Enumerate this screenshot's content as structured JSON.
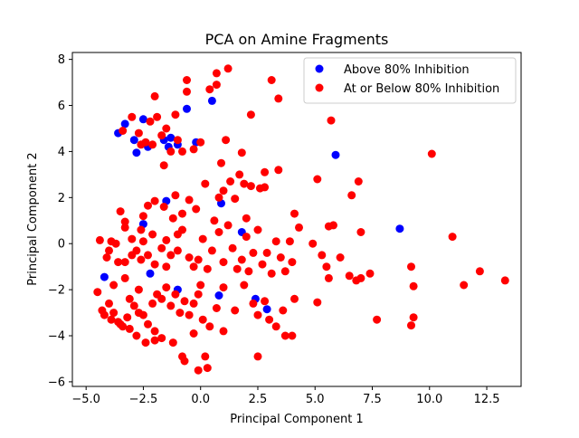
{
  "chart_data": {
    "type": "scatter",
    "title": "PCA on Amine Fragments",
    "xlabel": "Principal Component 1",
    "ylabel": "Principal Component 2",
    "xlim": [
      -5.6,
      14.0
    ],
    "ylim": [
      -6.2,
      8.3
    ],
    "xticks": [
      -5.0,
      -2.5,
      0.0,
      2.5,
      5.0,
      7.5,
      10.0,
      12.5
    ],
    "xtick_labels": [
      "−5.0",
      "−2.5",
      "0.0",
      "2.5",
      "5.0",
      "7.5",
      "10.0",
      "12.5"
    ],
    "yticks": [
      -6,
      -4,
      -2,
      0,
      2,
      4,
      6,
      8
    ],
    "ytick_labels": [
      "−6",
      "−4",
      "−2",
      "0",
      "2",
      "4",
      "6",
      "8"
    ],
    "grid": false,
    "legend_position": "top-right",
    "series": [
      {
        "name": "Above 80% Inhibition",
        "color": "#0000ff",
        "points": [
          [
            -3.6,
            4.8
          ],
          [
            -3.3,
            5.2
          ],
          [
            -2.9,
            4.5
          ],
          [
            -2.8,
            3.95
          ],
          [
            -2.5,
            5.4
          ],
          [
            -2.3,
            4.2
          ],
          [
            -1.6,
            4.5
          ],
          [
            -1.4,
            4.2
          ],
          [
            -1.3,
            4.6
          ],
          [
            -1.0,
            4.3
          ],
          [
            -0.6,
            5.85
          ],
          [
            -0.2,
            4.4
          ],
          [
            0.5,
            6.2
          ],
          [
            5.9,
            3.85
          ],
          [
            8.7,
            0.65
          ],
          [
            -2.5,
            0.85
          ],
          [
            -1.5,
            1.85
          ],
          [
            0.9,
            1.75
          ],
          [
            1.8,
            0.5
          ],
          [
            -1.0,
            -2.0
          ],
          [
            0.8,
            -2.25
          ],
          [
            2.4,
            -2.4
          ],
          [
            2.9,
            -2.85
          ],
          [
            -2.2,
            -1.3
          ],
          [
            -4.2,
            -1.45
          ]
        ]
      },
      {
        "name": "At or Below 80% Inhibition",
        "color": "#ff0000",
        "points": [
          [
            -3.4,
            4.9
          ],
          [
            -3.0,
            5.5
          ],
          [
            -2.7,
            4.8
          ],
          [
            -2.6,
            4.3
          ],
          [
            -2.4,
            4.4
          ],
          [
            -2.1,
            4.3
          ],
          [
            -2.2,
            5.3
          ],
          [
            -2.0,
            6.4
          ],
          [
            -1.9,
            5.5
          ],
          [
            -1.7,
            4.7
          ],
          [
            -1.6,
            3.4
          ],
          [
            -1.5,
            5.0
          ],
          [
            -1.3,
            4.0
          ],
          [
            -1.1,
            5.6
          ],
          [
            -1.0,
            4.5
          ],
          [
            -0.8,
            4.0
          ],
          [
            -0.6,
            7.1
          ],
          [
            -0.6,
            6.6
          ],
          [
            -0.3,
            4.1
          ],
          [
            0.0,
            4.4
          ],
          [
            0.4,
            6.7
          ],
          [
            0.7,
            7.4
          ],
          [
            0.7,
            6.9
          ],
          [
            1.2,
            7.6
          ],
          [
            2.2,
            5.6
          ],
          [
            3.1,
            7.1
          ],
          [
            3.4,
            6.3
          ],
          [
            5.7,
            5.35
          ],
          [
            1.1,
            4.5
          ],
          [
            1.8,
            3.95
          ],
          [
            0.9,
            3.5
          ],
          [
            1.0,
            2.3
          ],
          [
            1.7,
            3.0
          ],
          [
            2.2,
            2.5
          ],
          [
            2.8,
            3.1
          ],
          [
            3.4,
            3.2
          ],
          [
            2.6,
            2.4
          ],
          [
            2.8,
            2.45
          ],
          [
            1.9,
            2.6
          ],
          [
            1.5,
            1.95
          ],
          [
            1.3,
            2.7
          ],
          [
            10.1,
            3.9
          ],
          [
            5.1,
            2.8
          ],
          [
            6.6,
            2.1
          ],
          [
            6.9,
            2.7
          ],
          [
            0.8,
            2.0
          ],
          [
            0.2,
            2.6
          ],
          [
            -0.2,
            1.5
          ],
          [
            -0.5,
            1.9
          ],
          [
            -0.8,
            1.3
          ],
          [
            -1.2,
            1.1
          ],
          [
            -1.1,
            2.1
          ],
          [
            -1.6,
            1.6
          ],
          [
            -2.0,
            1.85
          ],
          [
            -2.3,
            1.65
          ],
          [
            -2.5,
            1.2
          ],
          [
            -2.6,
            0.6
          ],
          [
            -3.0,
            0.2
          ],
          [
            -3.3,
            0.7
          ],
          [
            -3.3,
            0.95
          ],
          [
            -3.5,
            1.4
          ],
          [
            -3.7,
            0.0
          ],
          [
            -3.9,
            0.1
          ],
          [
            -4.0,
            -0.3
          ],
          [
            -4.4,
            0.15
          ],
          [
            -4.1,
            -0.6
          ],
          [
            -3.6,
            -0.8
          ],
          [
            -3.3,
            -0.8
          ],
          [
            -3.0,
            -0.5
          ],
          [
            -2.8,
            -0.3
          ],
          [
            -2.5,
            0.1
          ],
          [
            -2.3,
            -0.5
          ],
          [
            -2.1,
            0.4
          ],
          [
            -2.0,
            -0.9
          ],
          [
            -1.7,
            -0.2
          ],
          [
            -1.5,
            0.15
          ],
          [
            -1.3,
            -0.5
          ],
          [
            -1.0,
            -0.3
          ],
          [
            -0.8,
            0.6
          ],
          [
            -0.5,
            -0.6
          ],
          [
            -0.3,
            -1.0
          ],
          [
            -0.1,
            -0.7
          ],
          [
            0.1,
            0.2
          ],
          [
            0.3,
            -1.1
          ],
          [
            0.5,
            -0.3
          ],
          [
            0.8,
            0.5
          ],
          [
            1.0,
            -0.8
          ],
          [
            1.2,
            0.8
          ],
          [
            1.4,
            -0.2
          ],
          [
            1.6,
            -1.1
          ],
          [
            1.8,
            -0.7
          ],
          [
            2.0,
            0.3
          ],
          [
            2.1,
            -1.2
          ],
          [
            2.3,
            -0.4
          ],
          [
            2.5,
            0.6
          ],
          [
            2.7,
            -0.9
          ],
          [
            2.9,
            -0.4
          ],
          [
            3.1,
            -1.3
          ],
          [
            3.3,
            0.1
          ],
          [
            3.5,
            -0.6
          ],
          [
            3.7,
            -1.2
          ],
          [
            3.9,
            0.1
          ],
          [
            4.1,
            1.3
          ],
          [
            4.3,
            0.7
          ],
          [
            4.0,
            -0.8
          ],
          [
            4.1,
            -2.4
          ],
          [
            4.9,
            0.0
          ],
          [
            5.1,
            -2.55
          ],
          [
            5.3,
            -0.5
          ],
          [
            5.5,
            -1.0
          ],
          [
            5.6,
            -1.5
          ],
          [
            5.8,
            0.8
          ],
          [
            6.1,
            -0.6
          ],
          [
            6.5,
            -1.4
          ],
          [
            6.8,
            -1.6
          ],
          [
            7.0,
            -1.5
          ],
          [
            7.4,
            -1.3
          ],
          [
            7.0,
            0.5
          ],
          [
            5.6,
            0.75
          ],
          [
            7.7,
            -3.3
          ],
          [
            9.2,
            -3.55
          ],
          [
            9.3,
            -3.2
          ],
          [
            9.3,
            -1.85
          ],
          [
            9.2,
            -1.0
          ],
          [
            11.0,
            0.3
          ],
          [
            11.5,
            -1.8
          ],
          [
            12.2,
            -1.2
          ],
          [
            13.3,
            -1.6
          ],
          [
            -4.5,
            -2.1
          ],
          [
            -4.3,
            -2.9
          ],
          [
            -4.2,
            -3.1
          ],
          [
            -4.0,
            -2.6
          ],
          [
            -3.8,
            -3.0
          ],
          [
            -3.6,
            -3.4
          ],
          [
            -3.4,
            -3.6
          ],
          [
            -3.2,
            -3.2
          ],
          [
            -3.1,
            -2.4
          ],
          [
            -2.9,
            -2.7
          ],
          [
            -2.7,
            -3.0
          ],
          [
            -2.5,
            -3.1
          ],
          [
            -2.3,
            -3.5
          ],
          [
            -2.1,
            -2.6
          ],
          [
            -1.9,
            -2.2
          ],
          [
            -1.7,
            -2.4
          ],
          [
            -1.5,
            -1.9
          ],
          [
            -1.3,
            -2.7
          ],
          [
            -1.1,
            -2.2
          ],
          [
            -0.9,
            -3.0
          ],
          [
            -0.7,
            -2.5
          ],
          [
            -0.5,
            -3.1
          ],
          [
            -0.3,
            -2.6
          ],
          [
            -0.1,
            -2.2
          ],
          [
            0.1,
            -3.3
          ],
          [
            0.4,
            -3.6
          ],
          [
            0.7,
            -2.8
          ],
          [
            1.0,
            -1.9
          ],
          [
            1.9,
            -1.8
          ],
          [
            2.3,
            -2.6
          ],
          [
            2.5,
            -3.1
          ],
          [
            2.8,
            -2.5
          ],
          [
            3.0,
            -3.3
          ],
          [
            3.3,
            -3.6
          ],
          [
            3.6,
            -2.9
          ],
          [
            3.7,
            -4.0
          ],
          [
            4.0,
            -4.0
          ],
          [
            2.5,
            -4.9
          ],
          [
            1.0,
            -3.8
          ],
          [
            -0.1,
            -5.5
          ],
          [
            0.3,
            -5.4
          ],
          [
            0.2,
            -4.9
          ],
          [
            -0.7,
            -5.1
          ],
          [
            -0.8,
            -4.9
          ],
          [
            -1.2,
            -4.3
          ],
          [
            -1.7,
            -4.1
          ],
          [
            -2.0,
            -4.2
          ],
          [
            -2.4,
            -4.3
          ],
          [
            -2.8,
            -4.0
          ],
          [
            -3.1,
            -3.7
          ],
          [
            -3.5,
            -3.5
          ],
          [
            -3.9,
            -3.3
          ],
          [
            -2.6,
            -0.7
          ],
          [
            -1.0,
            0.4
          ],
          [
            0.6,
            1.0
          ],
          [
            -3.8,
            -1.8
          ],
          [
            -3.3,
            -1.5
          ],
          [
            -2.7,
            -2.0
          ],
          [
            -1.5,
            -1.0
          ],
          [
            0.0,
            -1.8
          ],
          [
            1.5,
            -2.9
          ],
          [
            -2.0,
            -3.8
          ],
          [
            -0.3,
            -3.9
          ],
          [
            2.0,
            1.1
          ]
        ]
      }
    ]
  }
}
